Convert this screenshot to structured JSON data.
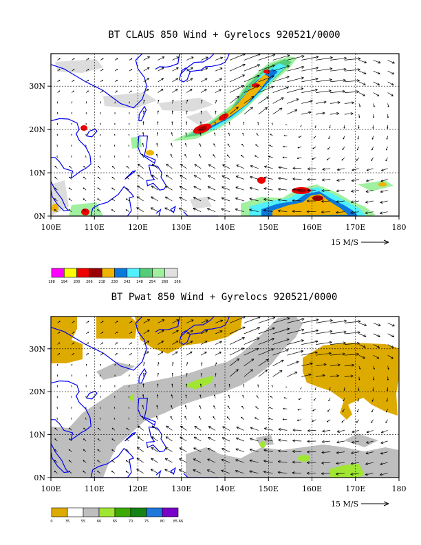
{
  "maps": [
    {
      "title": "BT CLAUS 850 Wind + Gyrelocs 920521/0000",
      "lon_ticks": [
        "100E",
        "110E",
        "120E",
        "130E",
        "140E",
        "150E",
        "160E",
        "170E",
        "180"
      ],
      "lat_ticks": [
        "0N",
        "10N",
        "20N",
        "30N"
      ],
      "scale_label": "15 M/S",
      "colorbar": {
        "labels": [
          "188",
          "194",
          "200",
          "206",
          "218",
          "230",
          "242",
          "248",
          "254",
          "260",
          "266"
        ],
        "colors": [
          "#ff00ff",
          "#ffff00",
          "#ee0000",
          "#990000",
          "#f0b400",
          "#0a78dc",
          "#50f0ff",
          "#55cc77",
          "#a0f0a0",
          "#e0e0e0"
        ]
      }
    },
    {
      "title": "BT Pwat 850 Wind + Gyrelocs 920521/0000",
      "lon_ticks": [
        "100E",
        "110E",
        "120E",
        "130E",
        "140E",
        "150E",
        "160E",
        "170E",
        "180"
      ],
      "lat_ticks": [
        "0N",
        "10N",
        "20N",
        "30N"
      ],
      "scale_label": "15 M/S",
      "colorbar": {
        "labels": [
          "0",
          "35",
          "55",
          "60",
          "65",
          "70",
          "75",
          "80",
          "85.66"
        ],
        "colors": [
          "#ddaa00",
          "#ffffff",
          "#bebebe",
          "#a0e632",
          "#3caa00",
          "#148214",
          "#1e78dc",
          "#7800c8"
        ]
      }
    }
  ]
}
